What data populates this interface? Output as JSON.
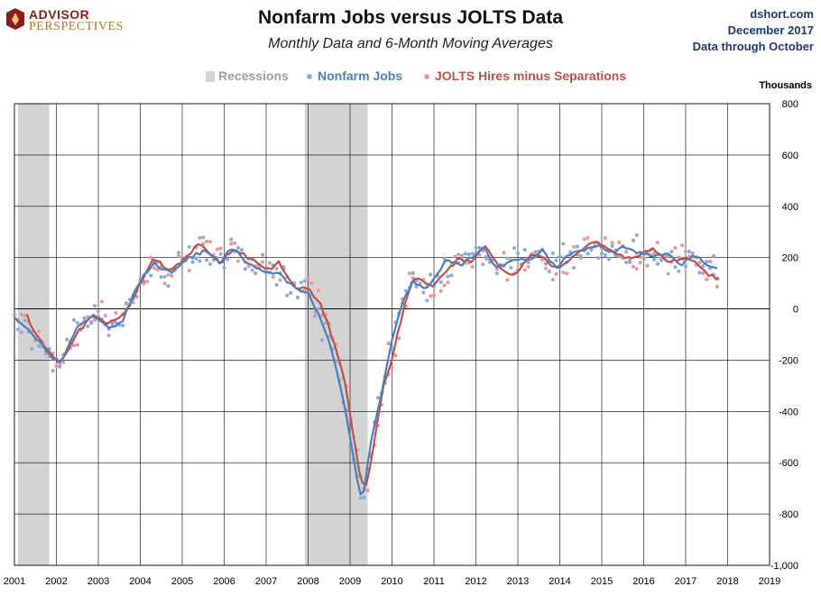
{
  "header": {
    "logo_line1": "ADVISOR",
    "logo_line2": "PERSPECTIVES",
    "title": "Nonfarm Jobs versus JOLTS Data",
    "subtitle": "Monthly Data and 6-Month Moving Averages",
    "source_lines": [
      "dshort.com",
      "December 2017",
      "Data through October"
    ]
  },
  "chart_data": {
    "type": "scatter",
    "title": "Nonfarm Jobs versus JOLTS Data",
    "subtitle": "Monthly Data and 6-Month Moving Averages",
    "ylabel": "Thousands",
    "xlim": [
      2001,
      2019
    ],
    "ylim": [
      -1000,
      800
    ],
    "x_ticks": [
      "2001",
      "2002",
      "2003",
      "2004",
      "2005",
      "2006",
      "2007",
      "2008",
      "2009",
      "2010",
      "2011",
      "2012",
      "2013",
      "2014",
      "2015",
      "2016",
      "2017",
      "2018",
      "2019"
    ],
    "y_ticks": [
      "800",
      "600",
      "400",
      "200",
      "0",
      "-200",
      "-400",
      "-600",
      "-800",
      "-1,000"
    ],
    "grid": true,
    "legend_position": "top-center",
    "recessions": [
      [
        2001.08,
        2001.83
      ],
      [
        2007.92,
        2009.42
      ]
    ],
    "colors": {
      "recession": "#d3d3d3",
      "jobs": "#4a7ebf",
      "jolts": "#c0504d",
      "jobs_dots": "#8fabd4",
      "jolts_dots": "#e39a98",
      "grid": "#000000"
    },
    "legend": [
      {
        "label": "Recessions",
        "color": "#9e9e9e",
        "swatch": "bar"
      },
      {
        "label": "Nonfarm Jobs",
        "color": "#4a7ebf",
        "swatch": "dot"
      },
      {
        "label": "JOLTS Hires minus Separations",
        "color": "#c0504d",
        "swatch": "dot"
      }
    ],
    "series_anchors": {
      "jobs_ma": [
        [
          2001.0,
          -30
        ],
        [
          2001.5,
          -110
        ],
        [
          2001.9,
          -190
        ],
        [
          2002.1,
          -215
        ],
        [
          2002.5,
          -70
        ],
        [
          2002.9,
          -25
        ],
        [
          2003.25,
          -80
        ],
        [
          2003.6,
          -40
        ],
        [
          2003.9,
          80
        ],
        [
          2004.3,
          180
        ],
        [
          2004.7,
          140
        ],
        [
          2005.1,
          190
        ],
        [
          2005.5,
          230
        ],
        [
          2005.9,
          180
        ],
        [
          2006.2,
          240
        ],
        [
          2006.6,
          170
        ],
        [
          2007.0,
          140
        ],
        [
          2007.3,
          140
        ],
        [
          2007.7,
          80
        ],
        [
          2008.0,
          60
        ],
        [
          2008.3,
          -40
        ],
        [
          2008.6,
          -180
        ],
        [
          2008.9,
          -400
        ],
        [
          2009.2,
          -700
        ],
        [
          2009.3,
          -745
        ],
        [
          2009.5,
          -520
        ],
        [
          2009.8,
          -290
        ],
        [
          2010.0,
          -120
        ],
        [
          2010.3,
          50
        ],
        [
          2010.5,
          110
        ],
        [
          2010.8,
          70
        ],
        [
          2011.0,
          120
        ],
        [
          2011.3,
          190
        ],
        [
          2011.6,
          170
        ],
        [
          2011.9,
          200
        ],
        [
          2012.2,
          240
        ],
        [
          2012.5,
          160
        ],
        [
          2012.9,
          190
        ],
        [
          2013.3,
          190
        ],
        [
          2013.6,
          230
        ],
        [
          2013.9,
          160
        ],
        [
          2014.2,
          210
        ],
        [
          2014.6,
          230
        ],
        [
          2014.9,
          250
        ],
        [
          2015.2,
          220
        ],
        [
          2015.6,
          240
        ],
        [
          2015.9,
          220
        ],
        [
          2016.2,
          210
        ],
        [
          2016.6,
          210
        ],
        [
          2016.9,
          175
        ],
        [
          2017.2,
          210
        ],
        [
          2017.5,
          170
        ],
        [
          2017.8,
          160
        ]
      ],
      "jolts_ma": [
        [
          2001.3,
          -25
        ],
        [
          2001.5,
          -95
        ],
        [
          2001.9,
          -180
        ],
        [
          2002.1,
          -215
        ],
        [
          2002.5,
          -90
        ],
        [
          2002.9,
          -20
        ],
        [
          2003.25,
          -60
        ],
        [
          2003.6,
          -20
        ],
        [
          2003.9,
          60
        ],
        [
          2004.3,
          200
        ],
        [
          2004.7,
          150
        ],
        [
          2005.1,
          200
        ],
        [
          2005.4,
          260
        ],
        [
          2005.9,
          180
        ],
        [
          2006.2,
          230
        ],
        [
          2006.6,
          200
        ],
        [
          2007.0,
          150
        ],
        [
          2007.3,
          180
        ],
        [
          2007.7,
          80
        ],
        [
          2008.0,
          80
        ],
        [
          2008.3,
          20
        ],
        [
          2008.6,
          -120
        ],
        [
          2008.9,
          -300
        ],
        [
          2009.2,
          -620
        ],
        [
          2009.35,
          -710
        ],
        [
          2009.5,
          -600
        ],
        [
          2009.8,
          -300
        ],
        [
          2010.0,
          -200
        ],
        [
          2010.3,
          20
        ],
        [
          2010.5,
          120
        ],
        [
          2010.8,
          100
        ],
        [
          2011.0,
          90
        ],
        [
          2011.3,
          150
        ],
        [
          2011.6,
          200
        ],
        [
          2011.9,
          180
        ],
        [
          2012.2,
          250
        ],
        [
          2012.5,
          170
        ],
        [
          2012.9,
          130
        ],
        [
          2013.3,
          210
        ],
        [
          2013.6,
          200
        ],
        [
          2013.9,
          160
        ],
        [
          2014.2,
          190
        ],
        [
          2014.6,
          240
        ],
        [
          2014.9,
          260
        ],
        [
          2015.2,
          230
        ],
        [
          2015.6,
          200
        ],
        [
          2015.9,
          210
        ],
        [
          2016.2,
          240
        ],
        [
          2016.6,
          180
        ],
        [
          2016.9,
          200
        ],
        [
          2017.2,
          190
        ],
        [
          2017.5,
          140
        ],
        [
          2017.8,
          110
        ]
      ]
    }
  }
}
